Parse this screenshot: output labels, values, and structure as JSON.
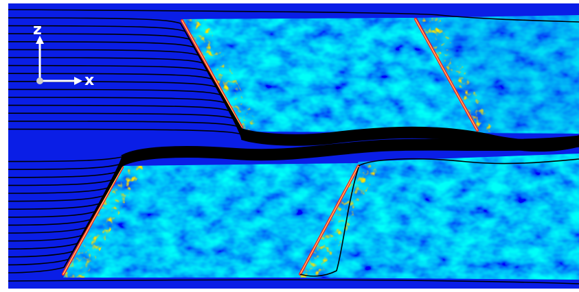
{
  "axes": {
    "z_label": "z",
    "x_label": "x"
  }
}
